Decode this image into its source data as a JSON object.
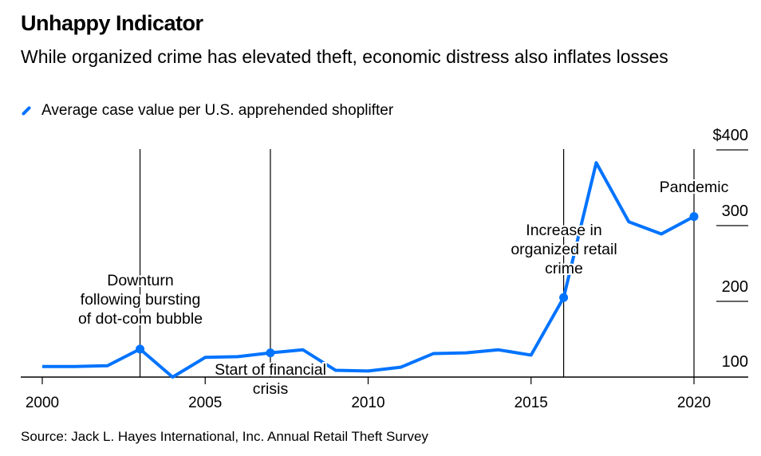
{
  "title": "Unhappy Indicator",
  "subtitle": "While organized crime has elevated theft, economic distress also inflates losses",
  "source": "Source: Jack L. Hayes International, Inc. Annual Retail Theft Survey",
  "chart_data": {
    "type": "line",
    "x": [
      2000,
      2001,
      2002,
      2003,
      2004,
      2005,
      2006,
      2007,
      2008,
      2009,
      2010,
      2011,
      2012,
      2013,
      2014,
      2015,
      2016,
      2017,
      2018,
      2019,
      2020
    ],
    "series": [
      {
        "name": "Average case value per U.S. apprehended shoplifter",
        "color": "#0073ff",
        "values": [
          114,
          114,
          115,
          137,
          100,
          126,
          127,
          132,
          136,
          109,
          108,
          113,
          131,
          132,
          136,
          129,
          205,
          383,
          305,
          289,
          312
        ]
      }
    ],
    "xlim": [
      2000,
      2021.5
    ],
    "ylim": [
      100,
      400
    ],
    "xticks": [
      "2000",
      "2005",
      "2010",
      "2015",
      "2020"
    ],
    "yticks": [
      "$400",
      "300",
      "200",
      "100"
    ],
    "ytick_values": [
      400,
      300,
      200,
      100
    ],
    "annotations": [
      {
        "x": 2003,
        "lines": [
          "Downturn",
          "following bursting",
          "of dot-com bubble"
        ]
      },
      {
        "x": 2007,
        "lines": [
          "Start of financial",
          "crisis"
        ]
      },
      {
        "x": 2016,
        "lines": [
          "Increase in",
          "organized retail",
          "crime"
        ]
      },
      {
        "x": 2020,
        "lines": [
          "Pandemic"
        ]
      }
    ]
  }
}
